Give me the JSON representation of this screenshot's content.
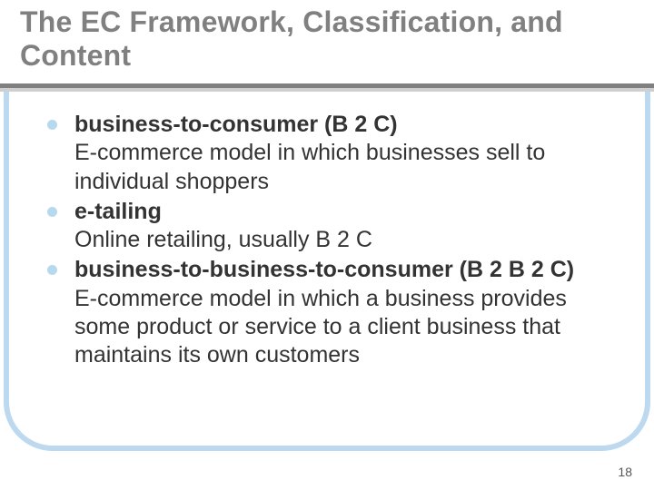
{
  "colors": {
    "title_text": "#808080",
    "underline_dark": "#808080",
    "underline_light": "#cfcfcf",
    "panel_border": "#bcd9ef",
    "bullet": "#b8d8ee",
    "body_text": "#333333",
    "page_num": "#555555",
    "background": "#ffffff"
  },
  "typography": {
    "title_fontsize": 32,
    "title_weight": "bold",
    "body_fontsize": 25,
    "font_family": "Arial"
  },
  "layout": {
    "slide_width": 720,
    "slide_height": 540,
    "panel_border_radius": 54,
    "panel_border_width": 6
  },
  "title": "The EC Framework, Classification, and Content",
  "items": [
    {
      "term": "business-to-consumer (B 2 C)",
      "definition": "E-commerce model in which businesses sell to individual shoppers"
    },
    {
      "term": "e-tailing",
      "definition": "Online retailing, usually B 2 C"
    },
    {
      "term": "business-to-business-to-consumer (B 2 B 2 C)",
      "definition": "E-commerce model in which a business provides some product or service to a client business that maintains its own customers"
    }
  ],
  "page_number": "18"
}
